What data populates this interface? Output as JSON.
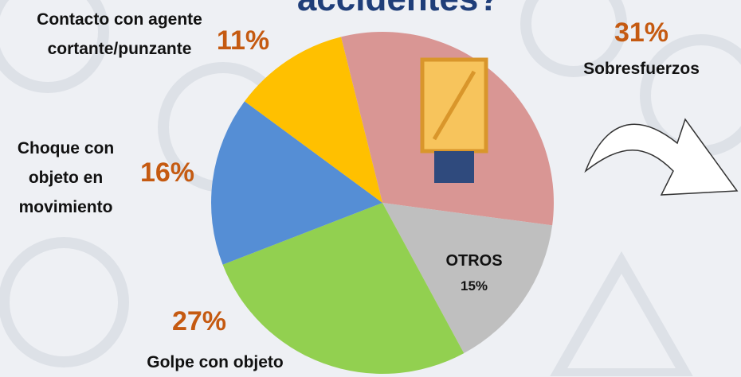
{
  "chart_data": {
    "type": "pie",
    "title": "accidentes?",
    "categories": [
      "Sobresfuerzos",
      "OTROS",
      "Golpe con objeto",
      "Choque con objeto en movimiento",
      "Contacto con agente cortante/punzante"
    ],
    "values": [
      31,
      15,
      27,
      16,
      11
    ],
    "value_labels": [
      "31%",
      "15%",
      "27%",
      "16%",
      "11%"
    ],
    "colors": [
      "#d99694",
      "#bfbfbf",
      "#92d050",
      "#558ed5",
      "#ffc000"
    ]
  }
}
